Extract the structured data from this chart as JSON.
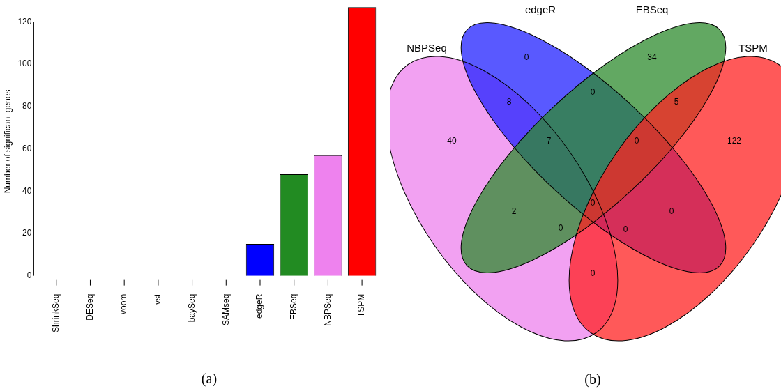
{
  "chart_data": [
    {
      "type": "bar",
      "xlabel": "(a)",
      "ylabel": "Number of significant genes",
      "categories": [
        "ShrinkSeq",
        "DESeq",
        "voom",
        "vst",
        "baySeq",
        "SAMseq",
        "edgeR",
        "EBSeq",
        "NBPSeq",
        "TSPM"
      ],
      "values": [
        0,
        0,
        0,
        0,
        0,
        0,
        15,
        48,
        57,
        127
      ],
      "colors": [
        "#ffffff",
        "#ffffff",
        "#ffffff",
        "#ffffff",
        "#ffffff",
        "#ffffff",
        "#0000ff",
        "#228b22",
        "#ee82ee",
        "#ff0000"
      ],
      "ylim": [
        0,
        127
      ],
      "yticks": [
        0,
        20,
        40,
        60,
        80,
        100,
        120
      ],
      "grid": false,
      "legend": false
    },
    {
      "type": "other",
      "xlabel": "(b)",
      "categories": [
        "NBPSeq",
        "edgeR",
        "EBSeq",
        "TSPM"
      ],
      "colors": [
        "#ee82ee",
        "#2222ff",
        "#2e8b2e",
        "#ff2222"
      ],
      "annotations": [
        "40",
        "0",
        "8",
        "34",
        "2",
        "0",
        "7",
        "122",
        "0",
        "0",
        "0",
        "5",
        "0",
        "0",
        "0"
      ]
    }
  ]
}
